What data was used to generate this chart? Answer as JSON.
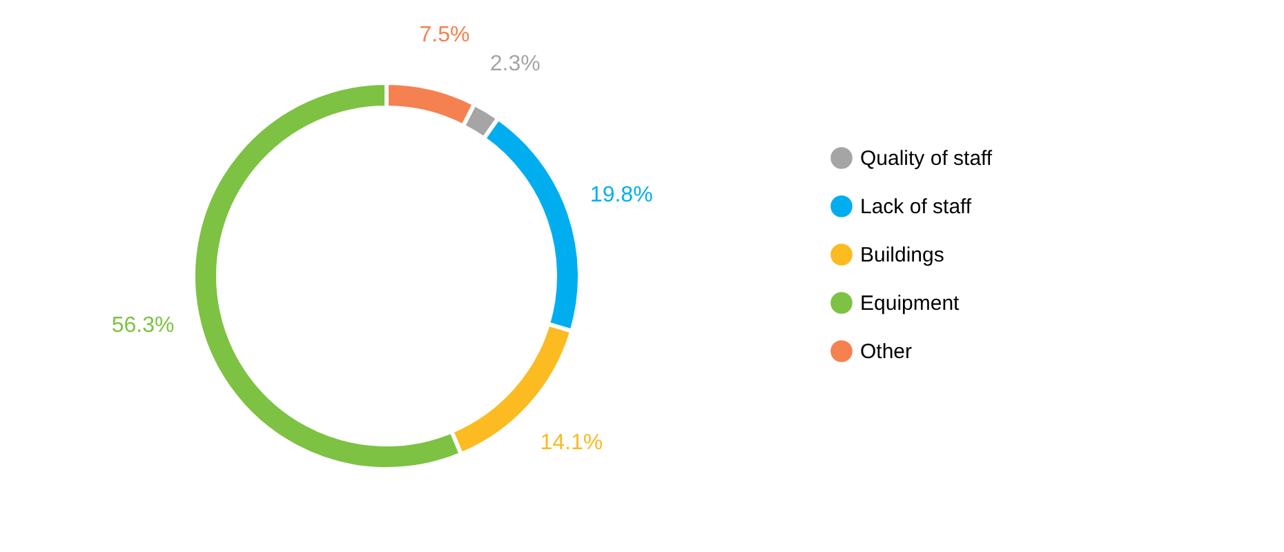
{
  "chart_data": {
    "type": "donut",
    "categories": [
      "Quality of staff",
      "Lack of staff",
      "Buildings",
      "Equipment",
      "Other"
    ],
    "values": [
      2.3,
      19.8,
      14.1,
      56.3,
      7.5
    ],
    "colors": [
      "#a5a5a5",
      "#00aeef",
      "#fbbb21",
      "#7dc242",
      "#f58150"
    ],
    "value_labels": [
      "2.3%",
      "19.8%",
      "14.1%",
      "56.3%",
      "7.5%"
    ],
    "legend": "right"
  }
}
